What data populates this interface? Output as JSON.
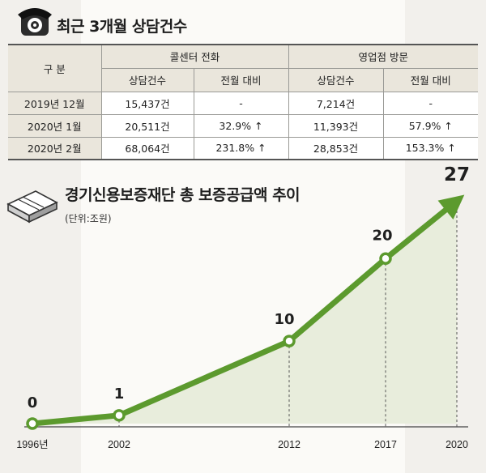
{
  "table": {
    "title": "최근 3개월 상담건수",
    "col_label": "구 분",
    "group1": "콜센터 전화",
    "group2": "영업점 방문",
    "sub_count": "상담건수",
    "sub_change": "전월 대비",
    "rows": [
      {
        "label": "2019년 12월",
        "call_count": "15,437건",
        "call_change": "-",
        "visit_count": "7,214건",
        "visit_change": "-"
      },
      {
        "label": "2020년 1월",
        "call_count": "20,511건",
        "call_change": "32.9% ↑",
        "visit_count": "11,393건",
        "visit_change": "57.9% ↑"
      },
      {
        "label": "2020년 2월",
        "call_count": "68,064건",
        "call_change": "231.8% ↑",
        "visit_count": "28,853건",
        "visit_change": "153.3% ↑"
      }
    ]
  },
  "chart_data": {
    "type": "line",
    "title": "경기신용보증재단 총 보증공급액 추이",
    "subtitle": "(단위:조원)",
    "x": [
      "1996년",
      "2002",
      "2012",
      "2017",
      "2020"
    ],
    "values": [
      0,
      1,
      10,
      20,
      27
    ],
    "data_labels": [
      "0",
      "1",
      "10",
      "20",
      "27"
    ],
    "color": "#5c9a2e",
    "fill_color": "#e8eddc"
  },
  "icons": {
    "table": "telephone-icon",
    "chart": "banknote-stack-icon"
  }
}
